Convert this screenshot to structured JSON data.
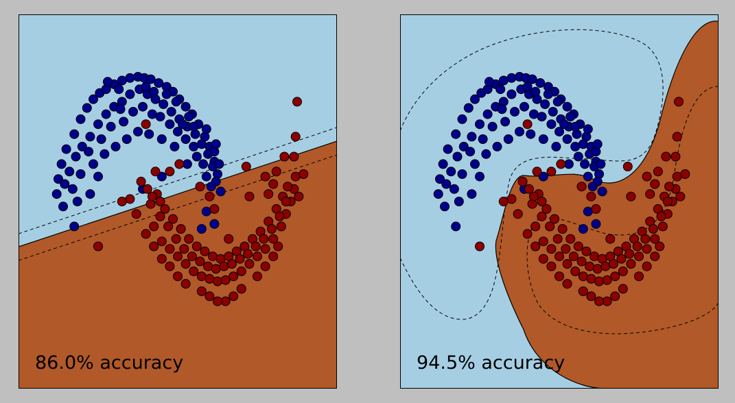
{
  "colors": {
    "background": "#bfbfbf",
    "region_class0": "#a6cee3",
    "region_class1": "#b15928",
    "point_class0": "#00008b",
    "point_class1": "#8b0000"
  },
  "chart_data": [
    {
      "type": "scatter",
      "title": "",
      "xlabel": "",
      "ylabel": "",
      "xlim": [
        -1.5,
        2.5
      ],
      "ylim": [
        -1.5,
        1.5
      ],
      "grid": false,
      "ticks": false,
      "decision_boundary": "linear",
      "margins": "dashed",
      "annotation": "86.0% accuracy",
      "accuracy": 86.0
    },
    {
      "type": "scatter",
      "title": "",
      "xlabel": "",
      "ylabel": "",
      "xlim": [
        -1.5,
        2.5
      ],
      "ylim": [
        -1.5,
        1.5
      ],
      "grid": false,
      "ticks": false,
      "decision_boundary": "nonlinear",
      "margins": "dashed",
      "annotation": "94.5% accuracy",
      "accuracy": 94.5
    }
  ],
  "series": [
    {
      "class": 0,
      "color": "#00008b",
      "points": [
        [
          -0.8,
          0.54
        ],
        [
          -0.72,
          0.66
        ],
        [
          -0.64,
          0.75
        ],
        [
          -0.56,
          0.82
        ],
        [
          -0.48,
          0.87
        ],
        [
          -0.4,
          0.9
        ],
        [
          -0.3,
          0.94
        ],
        [
          -0.2,
          0.97
        ],
        [
          -0.1,
          0.99
        ],
        [
          0,
          1
        ],
        [
          0.08,
          0.99
        ],
        [
          0.16,
          0.98
        ],
        [
          0.26,
          0.95
        ],
        [
          0.36,
          0.92
        ],
        [
          0.44,
          0.88
        ],
        [
          0.52,
          0.82
        ],
        [
          0.6,
          0.76
        ],
        [
          0.68,
          0.7
        ],
        [
          0.76,
          0.62
        ],
        [
          0.84,
          0.52
        ],
        [
          0.9,
          0.44
        ],
        [
          0.96,
          0.32
        ],
        [
          1.0,
          0.22
        ],
        [
          1.04,
          0.08
        ],
        [
          -0.9,
          0.42
        ],
        [
          -0.96,
          0.3
        ],
        [
          -1.0,
          0.18
        ],
        [
          -1.02,
          0.06
        ],
        [
          -0.7,
          0.44
        ],
        [
          -0.6,
          0.52
        ],
        [
          -0.5,
          0.62
        ],
        [
          -0.4,
          0.7
        ],
        [
          -0.3,
          0.76
        ],
        [
          -0.2,
          0.8
        ],
        [
          -0.1,
          0.86
        ],
        [
          0.02,
          0.9
        ],
        [
          0.12,
          0.86
        ],
        [
          0.22,
          0.82
        ],
        [
          0.32,
          0.78
        ],
        [
          0.42,
          0.72
        ],
        [
          0.52,
          0.66
        ],
        [
          0.62,
          0.6
        ],
        [
          0.72,
          0.54
        ],
        [
          0.8,
          0.46
        ],
        [
          0.88,
          0.38
        ],
        [
          0.94,
          0.28
        ],
        [
          0.98,
          0.16
        ],
        [
          -0.78,
          0.36
        ],
        [
          -0.86,
          0.24
        ],
        [
          -0.92,
          0.14
        ],
        [
          -0.82,
          0.1
        ],
        [
          -0.62,
          0.4
        ],
        [
          -0.46,
          0.5
        ],
        [
          -0.34,
          0.6
        ],
        [
          -0.18,
          0.64
        ],
        [
          -0.06,
          0.72
        ],
        [
          0.06,
          0.76
        ],
        [
          0.18,
          0.7
        ],
        [
          0.28,
          0.68
        ],
        [
          0.4,
          0.62
        ],
        [
          0.5,
          0.56
        ],
        [
          0.6,
          0.5
        ],
        [
          0.7,
          0.44
        ],
        [
          0.74,
          0.36
        ],
        [
          0.82,
          0.3
        ],
        [
          0.86,
          0.2
        ],
        [
          -0.56,
          0.3
        ],
        [
          -0.42,
          0.38
        ],
        [
          -0.28,
          0.44
        ],
        [
          -0.14,
          0.5
        ],
        [
          0.0,
          0.56
        ],
        [
          0.14,
          0.54
        ],
        [
          0.3,
          0.5
        ],
        [
          0.46,
          0.44
        ],
        [
          0.62,
          0.3
        ],
        [
          0.92,
          0.12
        ],
        [
          -0.72,
          0.22
        ],
        [
          -0.6,
          0.06
        ],
        [
          -0.94,
          -0.04
        ],
        [
          -0.5,
          0.2
        ],
        [
          -0.24,
          0.9
        ],
        [
          0.1,
          0.92
        ],
        [
          -0.38,
          0.96
        ],
        [
          0.2,
          0.88
        ],
        [
          0.48,
          0.8
        ],
        [
          0.7,
          0.6
        ],
        [
          0.86,
          0.58
        ],
        [
          0.96,
          0.4
        ],
        [
          1.02,
          0.3
        ],
        [
          0.06,
          0.1
        ],
        [
          0.86,
          -0.08
        ],
        [
          0.96,
          -0.18
        ],
        [
          0.8,
          -0.22
        ],
        [
          0.3,
          0.2
        ],
        [
          0.56,
          0.62
        ],
        [
          -0.8,
          -0.2
        ],
        [
          -0.22,
          0.74
        ],
        [
          0.36,
          0.86
        ],
        [
          0.64,
          0.68
        ],
        [
          0.98,
          0.46
        ],
        [
          -0.76,
          0.0
        ]
      ]
    },
    {
      "class": 1,
      "color": "#8b0000",
      "points": [
        [
          0.2,
          -0.2
        ],
        [
          0.3,
          -0.32
        ],
        [
          0.4,
          -0.38
        ],
        [
          0.5,
          -0.44
        ],
        [
          0.6,
          -0.5
        ],
        [
          0.7,
          -0.56
        ],
        [
          0.8,
          -0.6
        ],
        [
          0.9,
          -0.62
        ],
        [
          1.0,
          -0.64
        ],
        [
          1.1,
          -0.63
        ],
        [
          1.2,
          -0.6
        ],
        [
          1.3,
          -0.56
        ],
        [
          1.4,
          -0.5
        ],
        [
          1.5,
          -0.44
        ],
        [
          1.6,
          -0.38
        ],
        [
          1.7,
          -0.3
        ],
        [
          1.8,
          -0.2
        ],
        [
          1.86,
          -0.1
        ],
        [
          1.92,
          0.0
        ],
        [
          1.96,
          0.1
        ],
        [
          1.98,
          0.2
        ],
        [
          0.24,
          0.06
        ],
        [
          0.34,
          -0.06
        ],
        [
          0.44,
          -0.14
        ],
        [
          0.54,
          -0.22
        ],
        [
          0.64,
          -0.3
        ],
        [
          0.74,
          -0.36
        ],
        [
          0.84,
          -0.4
        ],
        [
          0.94,
          -0.44
        ],
        [
          1.04,
          -0.46
        ],
        [
          1.14,
          -0.44
        ],
        [
          1.24,
          -0.4
        ],
        [
          1.34,
          -0.36
        ],
        [
          1.44,
          -0.3
        ],
        [
          1.54,
          -0.24
        ],
        [
          1.64,
          -0.16
        ],
        [
          1.74,
          -0.06
        ],
        [
          1.82,
          0.04
        ],
        [
          1.88,
          0.12
        ],
        [
          0.16,
          -0.02
        ],
        [
          0.12,
          0.1
        ],
        [
          0.28,
          -0.12
        ],
        [
          0.38,
          -0.2
        ],
        [
          0.48,
          -0.3
        ],
        [
          0.58,
          -0.38
        ],
        [
          0.68,
          -0.44
        ],
        [
          0.78,
          -0.48
        ],
        [
          0.88,
          -0.52
        ],
        [
          0.98,
          -0.54
        ],
        [
          1.08,
          -0.52
        ],
        [
          1.18,
          -0.5
        ],
        [
          1.28,
          -0.46
        ],
        [
          1.38,
          -0.42
        ],
        [
          1.48,
          -0.36
        ],
        [
          1.58,
          -0.3
        ],
        [
          1.68,
          -0.22
        ],
        [
          1.78,
          -0.12
        ],
        [
          1.3,
          -0.7
        ],
        [
          1.2,
          -0.76
        ],
        [
          1.1,
          -0.8
        ],
        [
          1.0,
          -0.8
        ],
        [
          0.9,
          -0.76
        ],
        [
          1.5,
          -0.6
        ],
        [
          1.6,
          -0.52
        ],
        [
          1.7,
          -0.44
        ],
        [
          1.76,
          -0.36
        ],
        [
          0.6,
          -0.66
        ],
        [
          0.5,
          -0.6
        ],
        [
          0.4,
          -0.52
        ],
        [
          0.3,
          -0.46
        ],
        [
          0.2,
          -0.36
        ],
        [
          0.1,
          -0.26
        ],
        [
          -0.02,
          -0.1
        ],
        [
          -0.1,
          0.02
        ],
        [
          0.04,
          0.16
        ],
        [
          -0.2,
          0.0
        ],
        [
          0.22,
          0.24
        ],
        [
          0.4,
          0.24
        ],
        [
          0.52,
          0.3
        ],
        [
          0.78,
          0.12
        ],
        [
          0.9,
          0.04
        ],
        [
          0.96,
          -0.06
        ],
        [
          1.36,
          0.28
        ],
        [
          1.4,
          0.04
        ],
        [
          1.74,
          0.24
        ],
        [
          1.96,
          0.36
        ],
        [
          1.84,
          0.36
        ],
        [
          1.98,
          0.52
        ],
        [
          2.02,
          0.04
        ],
        [
          2.08,
          0.22
        ],
        [
          1.64,
          0.06
        ],
        [
          1.86,
          0.0
        ],
        [
          1.7,
          0.14
        ],
        [
          1.6,
          0.2
        ],
        [
          2.0,
          0.8
        ],
        [
          0.1,
          0.62
        ],
        [
          -0.5,
          -0.36
        ],
        [
          0.28,
          0.0
        ],
        [
          0.18,
          0.04
        ],
        [
          0.8,
          -0.72
        ],
        [
          1.14,
          -0.3
        ]
      ]
    }
  ]
}
